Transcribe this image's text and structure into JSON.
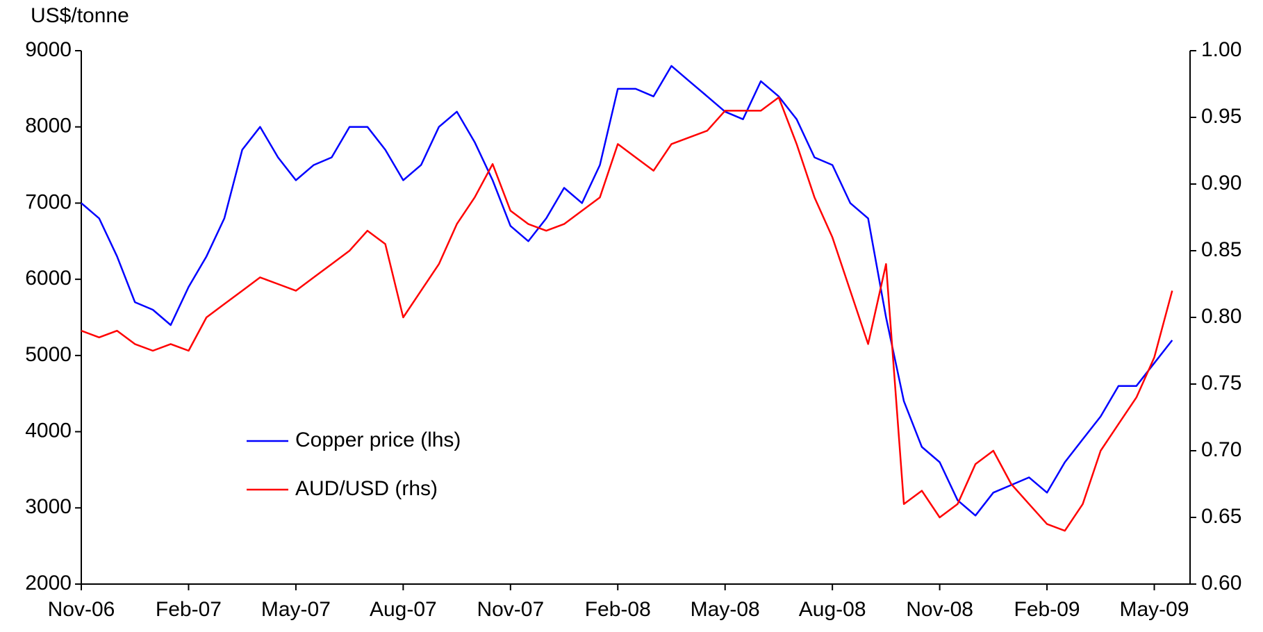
{
  "chart_data": {
    "type": "line",
    "y_label": "US$/tonne",
    "categories": [
      "Nov-06",
      null,
      null,
      null,
      null,
      null,
      "Feb-07",
      null,
      null,
      null,
      null,
      null,
      "May-07",
      null,
      null,
      null,
      null,
      null,
      "Aug-07",
      null,
      null,
      null,
      null,
      null,
      "Nov-07",
      null,
      null,
      null,
      null,
      null,
      "Feb-08",
      null,
      null,
      null,
      null,
      null,
      "May-08",
      null,
      null,
      null,
      null,
      null,
      "Aug-08",
      null,
      null,
      null,
      null,
      null,
      "Nov-08",
      null,
      null,
      null,
      null,
      null,
      "Feb-09",
      null,
      null,
      null,
      null,
      null,
      "May-09",
      null
    ],
    "series": [
      {
        "name": "Copper price (lhs)",
        "color": "#0000ff",
        "axis": "y",
        "values": [
          7000,
          6800,
          6300,
          5700,
          5600,
          5400,
          5900,
          6300,
          6800,
          7700,
          8000,
          7600,
          7300,
          7500,
          7600,
          8000,
          8000,
          7700,
          7300,
          7500,
          8000,
          8200,
          7800,
          7300,
          6700,
          6500,
          6800,
          7200,
          7000,
          7500,
          8500,
          8500,
          8400,
          8800,
          8600,
          8400,
          8200,
          8100,
          8600,
          8400,
          8100,
          7600,
          7500,
          7000,
          6800,
          5500,
          4400,
          3800,
          3600,
          3100,
          2900,
          3200,
          3300,
          3400,
          3200,
          3600,
          3900,
          4200,
          4600,
          4600,
          4900,
          5200
        ]
      },
      {
        "name": "AUD/USD (rhs)",
        "color": "#ff0000",
        "axis": "y2",
        "values": [
          0.79,
          0.785,
          0.79,
          0.78,
          0.775,
          0.78,
          0.775,
          0.8,
          0.81,
          0.82,
          0.83,
          0.825,
          0.82,
          0.83,
          0.84,
          0.85,
          0.865,
          0.855,
          0.8,
          0.82,
          0.84,
          0.87,
          0.89,
          0.915,
          0.88,
          0.87,
          0.865,
          0.87,
          0.88,
          0.89,
          0.93,
          0.92,
          0.91,
          0.93,
          0.935,
          0.94,
          0.955,
          0.955,
          0.955,
          0.965,
          0.93,
          0.89,
          0.86,
          0.82,
          0.78,
          0.84,
          0.66,
          0.67,
          0.65,
          0.66,
          0.69,
          0.7,
          0.675,
          0.66,
          0.645,
          0.64,
          0.66,
          0.7,
          0.72,
          0.74,
          0.77,
          0.82
        ]
      }
    ],
    "ylim": [
      2000,
      9000
    ],
    "yticks": [
      2000,
      3000,
      4000,
      5000,
      6000,
      7000,
      8000,
      9000
    ],
    "y2lim": [
      0.6,
      1.0
    ],
    "y2ticks": [
      {
        "value": 0.6,
        "label": "0.60"
      },
      0.65,
      {
        "value": 0.7,
        "label": "0.70"
      },
      0.75,
      {
        "value": 0.8,
        "label": "0.80"
      },
      0.85,
      {
        "value": 0.9,
        "label": "0.90"
      },
      0.95,
      {
        "value": 1.0,
        "label": "1.00"
      }
    ],
    "grid": false,
    "legend": "center left"
  }
}
